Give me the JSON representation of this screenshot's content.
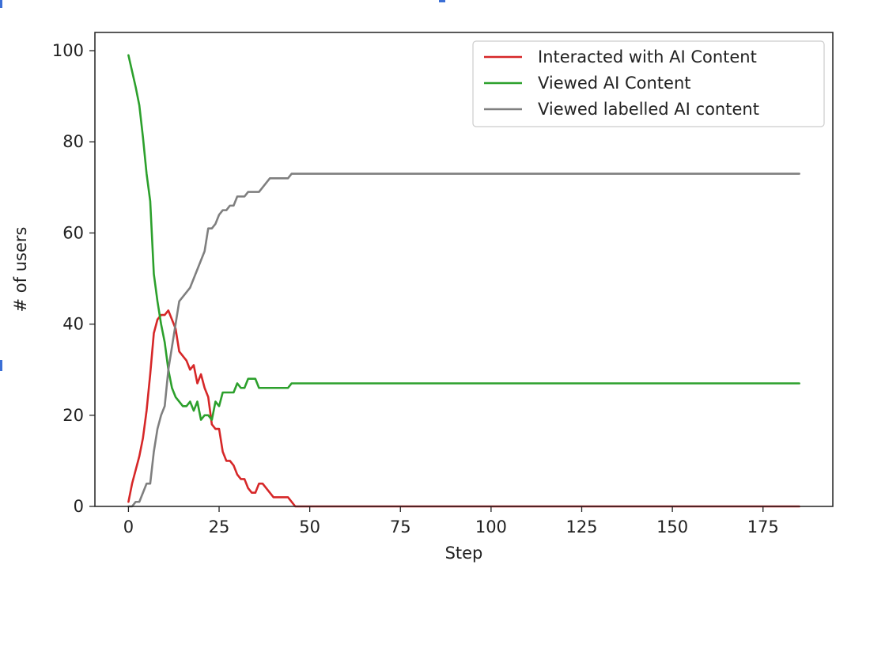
{
  "chart_data": {
    "type": "line",
    "xlabel": "Step",
    "ylabel": "# of users",
    "xlim": [
      -9.25,
      194.25
    ],
    "ylim": [
      0,
      104
    ],
    "xticks": [
      0,
      25,
      50,
      75,
      100,
      125,
      150,
      175
    ],
    "yticks": [
      0,
      20,
      40,
      60,
      80,
      100
    ],
    "grid": false,
    "legend_position": "top-right",
    "series": [
      {
        "name": "Interacted with AI Content",
        "color": "#d62728",
        "points": [
          [
            0,
            1
          ],
          [
            1,
            5
          ],
          [
            2,
            8
          ],
          [
            3,
            11
          ],
          [
            4,
            15
          ],
          [
            5,
            21
          ],
          [
            6,
            29
          ],
          [
            7,
            38
          ],
          [
            8,
            41
          ],
          [
            9,
            42
          ],
          [
            10,
            42
          ],
          [
            11,
            43
          ],
          [
            12,
            41
          ],
          [
            13,
            39
          ],
          [
            14,
            34
          ],
          [
            15,
            33
          ],
          [
            16,
            32
          ],
          [
            17,
            30
          ],
          [
            18,
            31
          ],
          [
            19,
            27
          ],
          [
            20,
            29
          ],
          [
            21,
            26
          ],
          [
            22,
            24
          ],
          [
            23,
            18
          ],
          [
            24,
            17
          ],
          [
            25,
            17
          ],
          [
            26,
            12
          ],
          [
            27,
            10
          ],
          [
            28,
            10
          ],
          [
            29,
            9
          ],
          [
            30,
            7
          ],
          [
            31,
            6
          ],
          [
            32,
            6
          ],
          [
            33,
            4
          ],
          [
            34,
            3
          ],
          [
            35,
            3
          ],
          [
            36,
            5
          ],
          [
            37,
            5
          ],
          [
            38,
            4
          ],
          [
            39,
            3
          ],
          [
            40,
            2
          ],
          [
            42,
            2
          ],
          [
            44,
            2
          ],
          [
            45,
            1
          ],
          [
            46,
            0
          ],
          [
            185,
            0
          ]
        ]
      },
      {
        "name": "Viewed AI Content",
        "color": "#2ca02c",
        "points": [
          [
            0,
            99
          ],
          [
            2,
            92
          ],
          [
            3,
            88
          ],
          [
            4,
            81
          ],
          [
            5,
            73
          ],
          [
            6,
            67
          ],
          [
            7,
            51
          ],
          [
            8,
            45
          ],
          [
            9,
            40
          ],
          [
            10,
            36
          ],
          [
            11,
            30
          ],
          [
            12,
            26
          ],
          [
            13,
            24
          ],
          [
            14,
            23
          ],
          [
            15,
            22
          ],
          [
            16,
            22
          ],
          [
            17,
            23
          ],
          [
            18,
            21
          ],
          [
            19,
            23
          ],
          [
            20,
            19
          ],
          [
            21,
            20
          ],
          [
            22,
            20
          ],
          [
            23,
            19
          ],
          [
            24,
            23
          ],
          [
            25,
            22
          ],
          [
            26,
            25
          ],
          [
            27,
            25
          ],
          [
            28,
            25
          ],
          [
            29,
            25
          ],
          [
            30,
            27
          ],
          [
            31,
            26
          ],
          [
            32,
            26
          ],
          [
            33,
            28
          ],
          [
            34,
            28
          ],
          [
            35,
            28
          ],
          [
            36,
            26
          ],
          [
            37,
            26
          ],
          [
            40,
            26
          ],
          [
            44,
            26
          ],
          [
            45,
            27
          ],
          [
            185,
            27
          ]
        ]
      },
      {
        "name": "Viewed labelled AI content",
        "color": "#7f7f7f",
        "points": [
          [
            0,
            0
          ],
          [
            1,
            0
          ],
          [
            2,
            1
          ],
          [
            3,
            1
          ],
          [
            4,
            3
          ],
          [
            5,
            5
          ],
          [
            6,
            5
          ],
          [
            7,
            12
          ],
          [
            8,
            17
          ],
          [
            9,
            20
          ],
          [
            10,
            22
          ],
          [
            11,
            30
          ],
          [
            12,
            35
          ],
          [
            13,
            40
          ],
          [
            14,
            45
          ],
          [
            15,
            46
          ],
          [
            16,
            47
          ],
          [
            17,
            48
          ],
          [
            18,
            50
          ],
          [
            19,
            52
          ],
          [
            20,
            54
          ],
          [
            21,
            56
          ],
          [
            22,
            61
          ],
          [
            23,
            61
          ],
          [
            24,
            62
          ],
          [
            25,
            64
          ],
          [
            26,
            65
          ],
          [
            27,
            65
          ],
          [
            28,
            66
          ],
          [
            29,
            66
          ],
          [
            30,
            68
          ],
          [
            31,
            68
          ],
          [
            32,
            68
          ],
          [
            33,
            69
          ],
          [
            34,
            69
          ],
          [
            35,
            69
          ],
          [
            36,
            69
          ],
          [
            37,
            70
          ],
          [
            38,
            71
          ],
          [
            39,
            72
          ],
          [
            40,
            72
          ],
          [
            41,
            72
          ],
          [
            42,
            72
          ],
          [
            43,
            72
          ],
          [
            44,
            72
          ],
          [
            45,
            73
          ],
          [
            185,
            73
          ]
        ]
      }
    ]
  }
}
